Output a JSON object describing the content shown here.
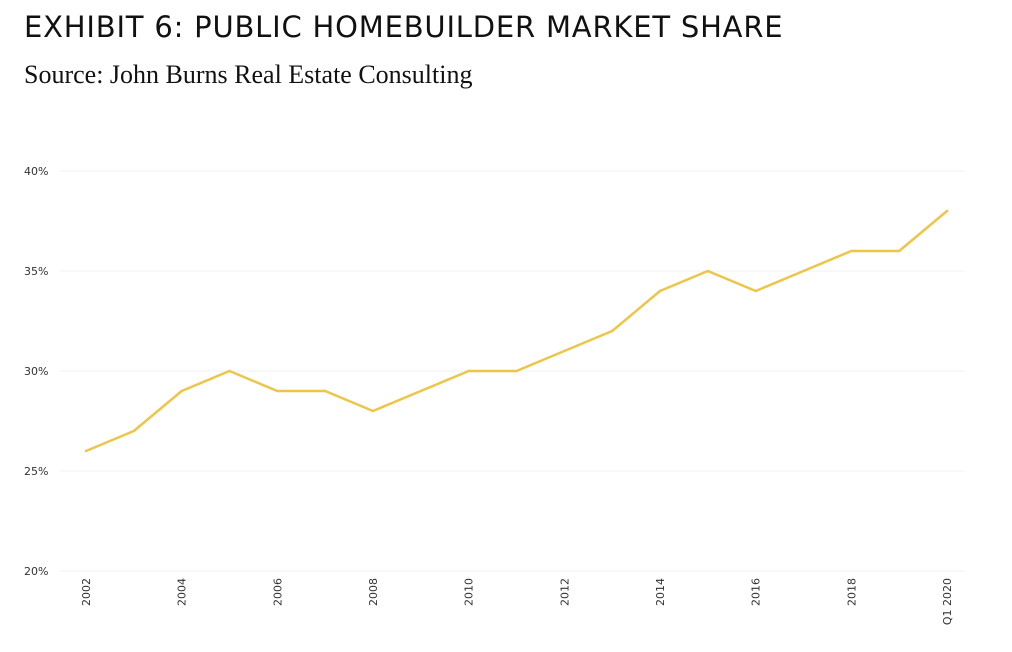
{
  "header": {
    "title": "EXHIBIT 6: PUBLIC HOMEBUILDER MARKET SHARE",
    "subtitle": "Source: John Burns Real Estate Consulting"
  },
  "colors": {
    "line": "#EDC549",
    "grid": "#F2F2F2"
  },
  "chart_data": {
    "type": "line",
    "title": "EXHIBIT 6: PUBLIC HOMEBUILDER MARKET SHARE",
    "subtitle": "Source: John Burns Real Estate Consulting",
    "xlabel": "",
    "ylabel": "",
    "x": [
      "2002",
      "2003",
      "2004",
      "2005",
      "2006",
      "2007",
      "2008",
      "2009",
      "2010",
      "2011",
      "2012",
      "2013",
      "2014",
      "2015",
      "2016",
      "2017",
      "2018",
      "2019",
      "Q1 2020"
    ],
    "x_tick_labels": [
      "2002",
      "2004",
      "2006",
      "2008",
      "2010",
      "2012",
      "2014",
      "2016",
      "2018",
      "Q1 2020"
    ],
    "series": [
      {
        "values": [
          26,
          27,
          29,
          30,
          29,
          29,
          28,
          29,
          30,
          30,
          31,
          32,
          34,
          35,
          34,
          35,
          36,
          36,
          38
        ]
      }
    ],
    "ylim": [
      20,
      40
    ],
    "y_ticks": [
      20,
      25,
      30,
      35,
      40
    ],
    "y_tick_format": "percent",
    "grid": true,
    "legend": "none"
  }
}
